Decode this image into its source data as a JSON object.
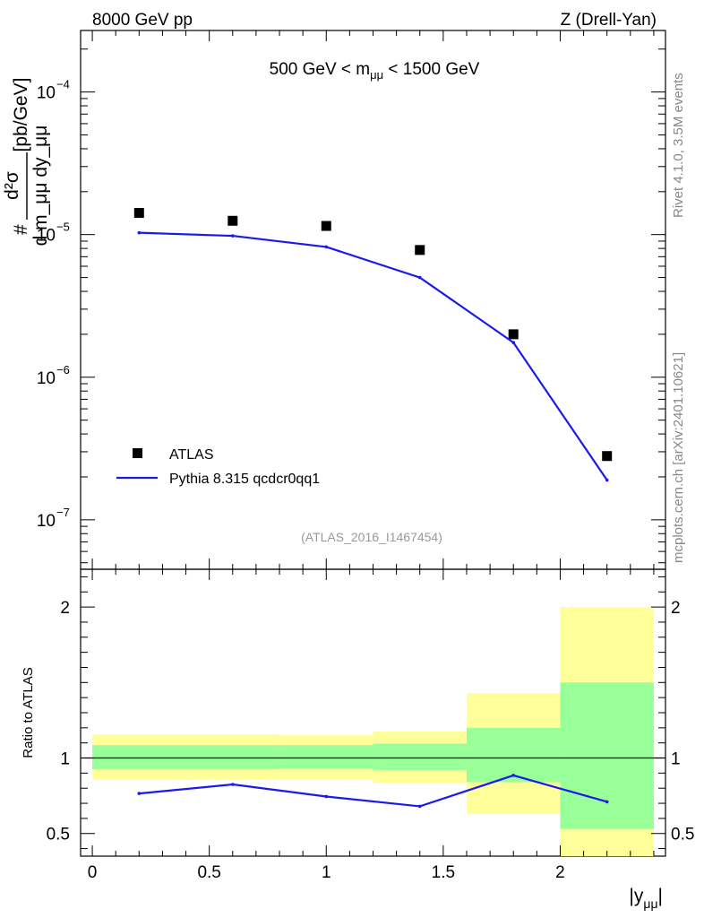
{
  "header": {
    "left_label": "8000 GeV pp",
    "right_label": "Z (Drell-Yan)"
  },
  "side_labels": {
    "rivet": "Rivet 4.1.0,  3.5M events",
    "mcplots": "mcplots.cern.ch [arXiv:2401.10621]"
  },
  "chart_data": {
    "type": "line",
    "title": "500 GeV < m_μμ < 1500 GeV",
    "watermark": "(ATLAS_2016_I1467454)",
    "xlabel": "|y_μμ|",
    "ylabel": "d²σ / d m_μμ dy_μμ [pb/GeV]",
    "ylabel_parts": {
      "hash": "#",
      "num": "d²σ",
      "den": "d m_μμ dy_μμ",
      "unit": "[pb/GeV]"
    },
    "xlim": [
      -0.05,
      2.45
    ],
    "ylim": [
      4.5e-08,
      0.00027
    ],
    "yscale": "log",
    "x_ticks": [
      "0",
      "0.5",
      "1",
      "1.5",
      "2"
    ],
    "y_ticks": [
      {
        "value": 1e-07,
        "mantissa": "10",
        "exp": "−7"
      },
      {
        "value": 1e-06,
        "mantissa": "10",
        "exp": "−6"
      },
      {
        "value": 1e-05,
        "mantissa": "10",
        "exp": "−5"
      },
      {
        "value": 0.0001,
        "mantissa": "10",
        "exp": "−4"
      }
    ],
    "legend": {
      "placement": "bottom-left",
      "entries": [
        "ATLAS",
        "Pythia 8.315 qcdcr0qq1"
      ]
    },
    "series": [
      {
        "name": "ATLAS",
        "style": "markers",
        "color": "#000000",
        "x": [
          0.2,
          0.6,
          1.0,
          1.4,
          1.8,
          2.2
        ],
        "values": [
          1.42e-05,
          1.25e-05,
          1.15e-05,
          7.8e-06,
          2e-06,
          2.8e-07
        ]
      },
      {
        "name": "Pythia 8.315 qcdcr0qq1",
        "style": "line",
        "color": "#1a1aee",
        "x": [
          0.2,
          0.6,
          1.0,
          1.4,
          1.8,
          2.2
        ],
        "values": [
          1.03e-05,
          9.8e-06,
          8.2e-06,
          5e-06,
          1.75e-06,
          1.9e-07
        ]
      }
    ],
    "ratio": {
      "ylabel": "Ratio to ATLAS",
      "ylim": [
        0.35,
        2.25
      ],
      "y_ticks": [
        "0.5",
        "1",
        "2"
      ],
      "bins": [
        {
          "lo": 0.0,
          "hi": 0.4,
          "inner": [
            0.925,
            1.085
          ],
          "outer": [
            0.855,
            1.155
          ]
        },
        {
          "lo": 0.4,
          "hi": 0.8,
          "inner": [
            0.925,
            1.085
          ],
          "outer": [
            0.855,
            1.155
          ]
        },
        {
          "lo": 0.8,
          "hi": 1.2,
          "inner": [
            0.93,
            1.085
          ],
          "outer": [
            0.86,
            1.15
          ]
        },
        {
          "lo": 1.2,
          "hi": 1.6,
          "inner": [
            0.92,
            1.095
          ],
          "outer": [
            0.835,
            1.175
          ]
        },
        {
          "lo": 1.6,
          "hi": 2.0,
          "inner": [
            0.84,
            1.2
          ],
          "outer": [
            0.63,
            1.43
          ]
        },
        {
          "lo": 2.0,
          "hi": 2.4,
          "inner": [
            0.53,
            1.5
          ],
          "outer": [
            0.3,
            2.0
          ]
        }
      ],
      "series": [
        {
          "name": "Pythia 8.315 qcdcr0qq1",
          "x": [
            0.2,
            0.6,
            1.0,
            1.4,
            1.8,
            2.2
          ],
          "values": [
            0.765,
            0.825,
            0.745,
            0.68,
            0.885,
            0.71
          ]
        }
      ]
    }
  },
  "colors": {
    "inner_band": "#99ff99",
    "outer_band": "#ffff99",
    "mc_line": "#1a1aee",
    "data_marker": "#000000",
    "side_text": "#888888",
    "watermark": "#999999"
  }
}
